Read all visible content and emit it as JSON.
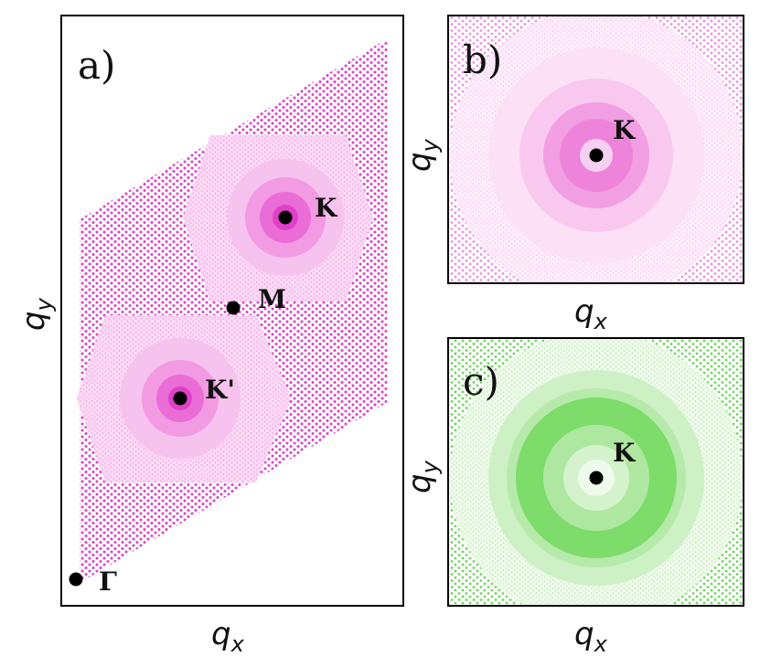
{
  "colors": {
    "magenta": "#e040c8",
    "magenta_light": "#f6c6ee",
    "green": "#5cd64a",
    "green_light": "#c9f0c0",
    "point": "#000000",
    "frame": "#000000"
  },
  "panels": {
    "a": {
      "label": "a)",
      "points": {
        "K": "K",
        "Kp": "K'",
        "M": "M",
        "G": "Γ"
      },
      "xlabel": {
        "main": "q",
        "sub": "x"
      },
      "ylabel": {
        "main": "q",
        "sub": "y"
      }
    },
    "b": {
      "label": "b)",
      "points": {
        "K": "K"
      },
      "xlabel": {
        "main": "q",
        "sub": "x"
      },
      "ylabel": {
        "main": "q",
        "sub": "y"
      }
    },
    "c": {
      "label": "c)",
      "points": {
        "K": "K"
      },
      "xlabel": {
        "main": "q",
        "sub": "x"
      },
      "ylabel": {
        "main": "q",
        "sub": "y"
      }
    }
  }
}
